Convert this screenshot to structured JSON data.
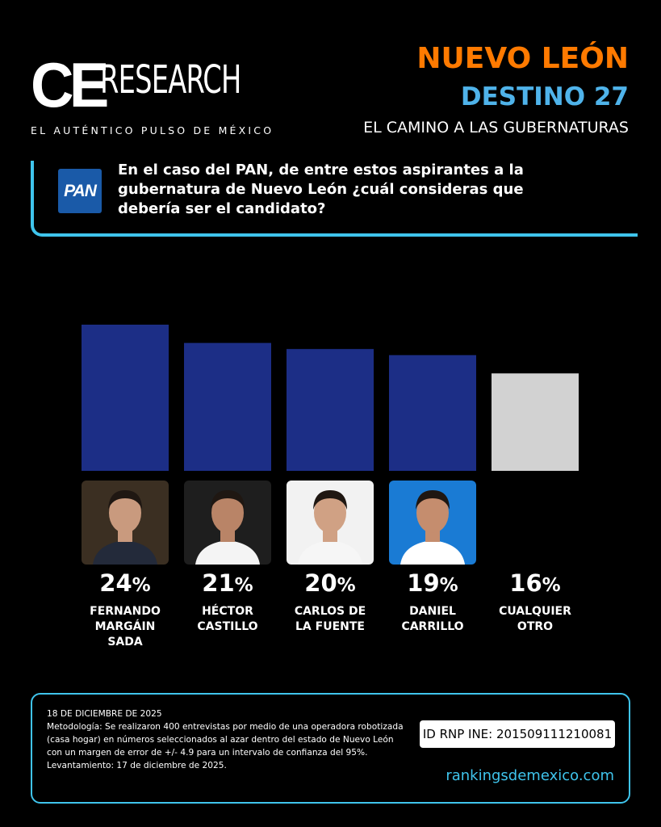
{
  "brand": {
    "ce": "CE",
    "research": "RESEARCH",
    "tagline": "EL AUTÉNTICO PULSO DE MÉXICO"
  },
  "header": {
    "state": "NUEVO LEÓN",
    "subtitle": "DESTINO 27",
    "line": "EL CAMINO A LAS GUBERNATURAS"
  },
  "question": {
    "party_logo_text": "PAN",
    "text": "En el caso del PAN, de entre estos aspirantes a la gubernatura de Nuevo León ¿cuál consideras que debería ser el candidato?"
  },
  "colors": {
    "bar_candidate": "#1c2e86",
    "bar_other": "#d2d2d2",
    "accent_orange": "#ff7a00",
    "accent_blue": "#4fb3ea",
    "accent_cyan": "#3fc4ec"
  },
  "chart_data": {
    "type": "bar",
    "categories": [
      "FERNANDO MARGÁIN SADA",
      "HÉCTOR CASTILLO",
      "CARLOS DE LA FUENTE",
      "DANIEL CARRILLO",
      "CUALQUIER OTRO"
    ],
    "values": [
      24,
      21,
      20,
      19,
      16
    ],
    "value_labels": [
      "24",
      "21",
      "20",
      "19",
      "16"
    ],
    "unit": "%",
    "name_lines": [
      [
        "FERNANDO",
        "MARGÁIN",
        "SADA"
      ],
      [
        "HÉCTOR",
        "CASTILLO"
      ],
      [
        "CARLOS DE",
        "LA FUENTE"
      ],
      [
        "DANIEL",
        "CARRILLO"
      ],
      [
        "CUALQUIER",
        "OTRO"
      ]
    ],
    "has_photo": [
      true,
      true,
      true,
      true,
      false
    ],
    "ylim": [
      0,
      24
    ],
    "grid": false,
    "legend": "none"
  },
  "footer": {
    "date": "18 DE DICIEMBRE DE 2025",
    "methodology": "Metodología: Se realizaron 400 entrevistas por medio de una operadora robotizada (casa hogar) en números seleccionados al azar dentro del estado de Nuevo León con un margen de error de +/- 4.9 para un intervalo de confianza del 95%.",
    "fieldwork": "Levantamiento: 17 de diciembre de 2025.",
    "rnp": "ID RNP INE: 201509111210081",
    "website": "rankingsdemexico.com"
  }
}
